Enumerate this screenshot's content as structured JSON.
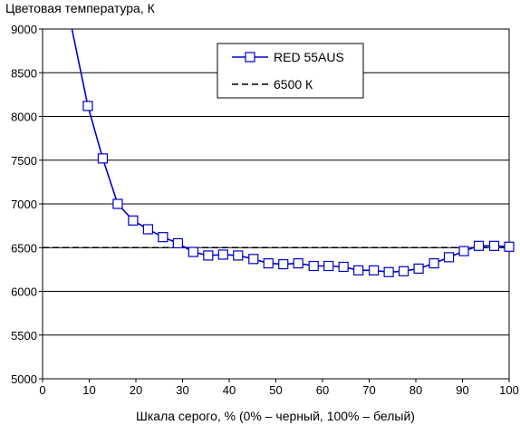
{
  "chart_data": {
    "type": "line",
    "title": "",
    "ylabel": "Цветовая температура, К",
    "xlabel": "Шкала серого, % (0% – черный, 100% – белый)",
    "xlim": [
      0,
      100
    ],
    "ylim": [
      5000,
      9000
    ],
    "xticks": [
      0,
      10,
      20,
      30,
      40,
      50,
      60,
      70,
      80,
      90,
      100
    ],
    "yticks": [
      5000,
      5500,
      6000,
      6500,
      7000,
      7500,
      8000,
      8500,
      9000
    ],
    "xtick_labels": [
      "0",
      "10",
      "20",
      "30",
      "40",
      "50",
      "60",
      "70",
      "80",
      "90",
      "100"
    ],
    "ytick_labels": [
      "5000",
      "5500",
      "6000",
      "6500",
      "7000",
      "7500",
      "8000",
      "8500",
      "9000"
    ],
    "grid": "horizontal",
    "legend_position": "top-right",
    "series": [
      {
        "name": "RED 55AUS",
        "color": "#0000cc",
        "marker": "square-open",
        "x": [
          9.7,
          12.9,
          16.1,
          19.4,
          22.6,
          25.8,
          29.0,
          32.3,
          35.5,
          38.7,
          41.9,
          45.2,
          48.4,
          51.6,
          54.8,
          58.1,
          61.3,
          64.5,
          67.7,
          71.0,
          74.2,
          77.4,
          80.6,
          83.9,
          87.1,
          90.3,
          93.5,
          96.8,
          100
        ],
        "y": [
          8120,
          7520,
          7000,
          6810,
          6710,
          6620,
          6550,
          6450,
          6410,
          6420,
          6410,
          6370,
          6320,
          6310,
          6320,
          6290,
          6290,
          6280,
          6240,
          6240,
          6220,
          6230,
          6260,
          6320,
          6390,
          6460,
          6520,
          6520,
          6510
        ],
        "curve_start": [
          6.3,
          9000
        ]
      },
      {
        "name": "6500 К",
        "color": "#000000",
        "style": "dashed",
        "x": [
          0,
          100
        ],
        "y": [
          6500,
          6500
        ]
      }
    ]
  }
}
